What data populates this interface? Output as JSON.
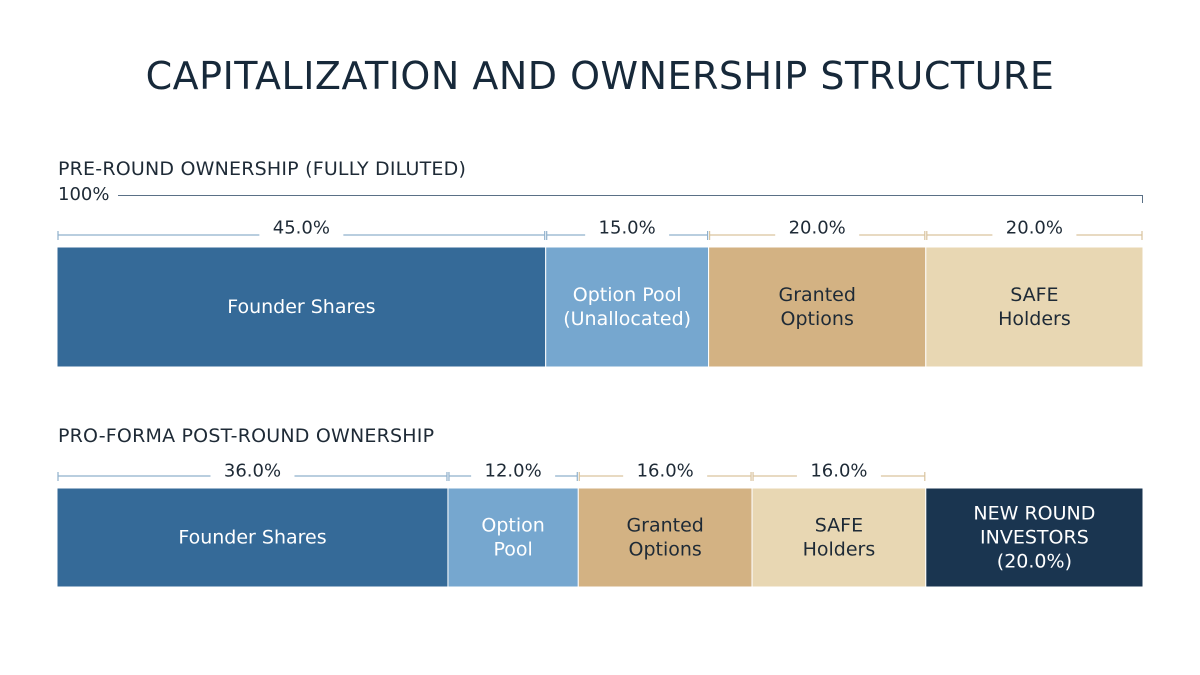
{
  "title": "CAPITALIZATION AND OWNERSHIP STRUCTURE",
  "colors": {
    "founder": "#356a98",
    "option_pool": "#76a7cf",
    "granted": "#d3b283",
    "safe": "#e8d7b3",
    "new_investors": "#1a3550",
    "bracket_blue": "#8fb0cc",
    "bracket_tan": "#d9c39e"
  },
  "chart_data": [
    {
      "type": "bar",
      "subtype": "stacked-horizontal",
      "title": "PRE-ROUND OWNERSHIP (FULLY DILUTED)",
      "total_label": "100%",
      "segments": [
        {
          "label": [
            "Founder Shares"
          ],
          "value": 45.0,
          "value_label": "45.0%",
          "color": "founder",
          "text_color": "#ffffff"
        },
        {
          "label": [
            "Option Pool",
            "(Unallocated)"
          ],
          "value": 15.0,
          "value_label": "15.0%",
          "color": "option_pool",
          "text_color": "#ffffff"
        },
        {
          "label": [
            "Granted",
            "Options"
          ],
          "value": 20.0,
          "value_label": "20.0%",
          "color": "granted",
          "text_color": "#1e2a36"
        },
        {
          "label": [
            "SAFE",
            "Holders"
          ],
          "value": 20.0,
          "value_label": "20.0%",
          "color": "safe",
          "text_color": "#1e2a36"
        }
      ]
    },
    {
      "type": "bar",
      "subtype": "stacked-horizontal",
      "title": "PRO-FORMA POST-ROUND OWNERSHIP",
      "segments": [
        {
          "label": [
            "Founder Shares"
          ],
          "value": 36.0,
          "value_label": "36.0%",
          "color": "founder",
          "text_color": "#ffffff"
        },
        {
          "label": [
            "Option",
            "Pool"
          ],
          "value": 12.0,
          "value_label": "12.0%",
          "color": "option_pool",
          "text_color": "#ffffff"
        },
        {
          "label": [
            "Granted",
            "Options"
          ],
          "value": 16.0,
          "value_label": "16.0%",
          "color": "granted",
          "text_color": "#1e2a36"
        },
        {
          "label": [
            "SAFE",
            "Holders"
          ],
          "value": 16.0,
          "value_label": "16.0%",
          "color": "safe",
          "text_color": "#1e2a36"
        },
        {
          "label": [
            "NEW ROUND",
            "INVESTORS",
            "(20.0%)"
          ],
          "value": 20.0,
          "value_label": "",
          "color": "new_investors",
          "text_color": "#ffffff"
        }
      ]
    }
  ]
}
